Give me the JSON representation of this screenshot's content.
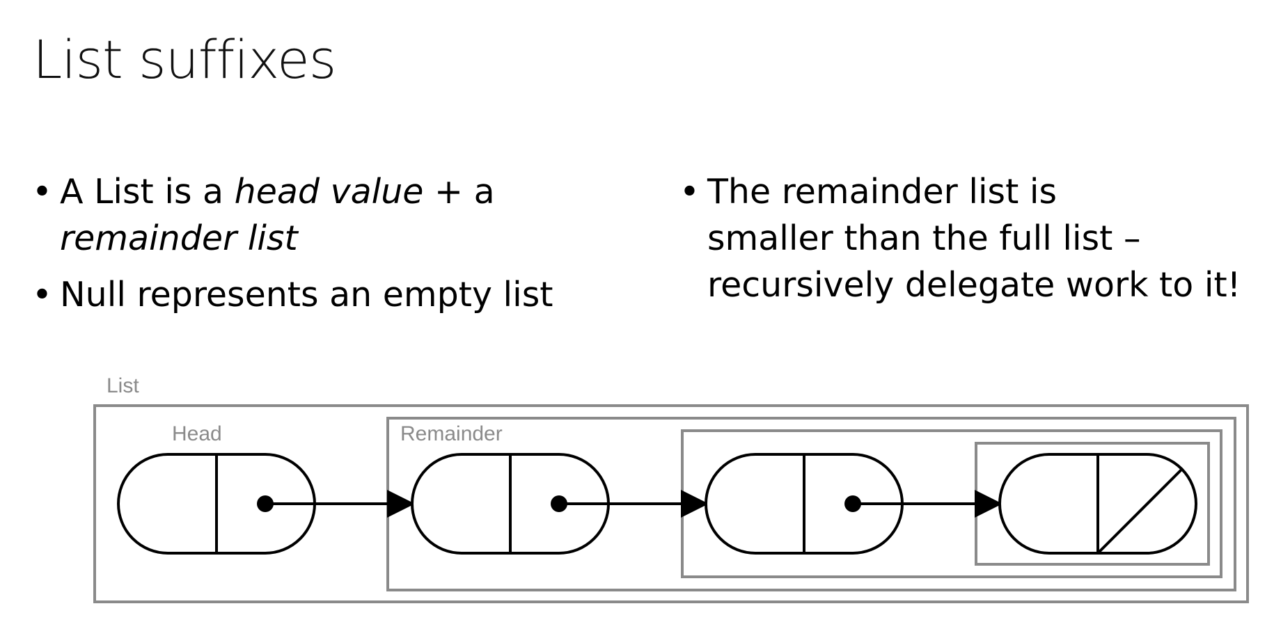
{
  "slide": {
    "title": "List suffixes",
    "left_bullets": [
      {
        "parts": [
          {
            "text": "A List is a ",
            "italic": false
          },
          {
            "text": "head value",
            "italic": true
          },
          {
            "text": " + a",
            "italic": false
          },
          {
            "text": "remainder list",
            "italic": true
          }
        ]
      },
      {
        "text": "Null represents an empty list"
      }
    ],
    "right_bullets": [
      {
        "lines": [
          "The remainder list is",
          "smaller than the full list –",
          "recursively delegate work to it!"
        ]
      }
    ],
    "bullet_glyph": "•"
  },
  "diagram": {
    "labels": {
      "list": "List",
      "head": "Head",
      "remainder": "Remainder"
    },
    "nodes": [
      {
        "pointer": "next"
      },
      {
        "pointer": "next"
      },
      {
        "pointer": "next"
      },
      {
        "pointer": "null"
      }
    ],
    "colors": {
      "frame": "#8a8a8a",
      "node": "#000000"
    }
  }
}
